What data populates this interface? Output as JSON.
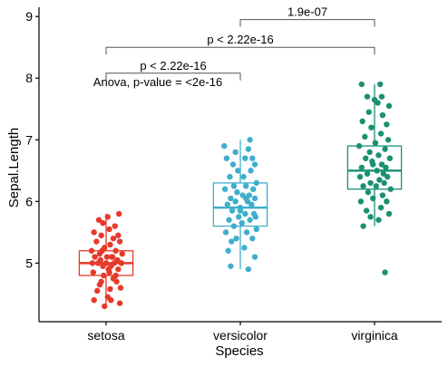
{
  "chart_data": {
    "type": "box",
    "title": "",
    "xlabel": "Species",
    "ylabel": "Sepal.Length",
    "categories": [
      "setosa",
      "versicolor",
      "virginica"
    ],
    "ylim": [
      4.05,
      9.15
    ],
    "yticks": [
      "5",
      "6",
      "7",
      "8",
      "9"
    ],
    "grid": false,
    "legend": "none",
    "series": [
      {
        "name": "setosa",
        "color": "#E7392A",
        "box": {
          "whisker_low": 4.3,
          "q1": 4.8,
          "median": 5.0,
          "q3": 5.2,
          "whisker_high": 5.8
        },
        "points": [
          [
            -0.08,
            4.65
          ],
          [
            0.05,
            4.58
          ],
          [
            0.12,
            4.8
          ],
          [
            -0.15,
            4.4
          ],
          [
            0.02,
            4.45
          ],
          [
            0.17,
            4.35
          ],
          [
            -0.02,
            4.3
          ],
          [
            0.06,
            4.4
          ],
          [
            -0.11,
            4.55
          ],
          [
            0.18,
            4.6
          ],
          [
            -0.06,
            4.7
          ],
          [
            0.09,
            4.75
          ],
          [
            0.15,
            4.9
          ],
          [
            -0.16,
            4.85
          ],
          [
            -0.04,
            4.95
          ],
          [
            0.03,
            4.9
          ],
          [
            0.1,
            5.0
          ],
          [
            -0.1,
            5.0
          ],
          [
            0.14,
            5.05
          ],
          [
            -0.14,
            5.1
          ],
          [
            0.01,
            5.1
          ],
          [
            -0.07,
            5.05
          ],
          [
            0.2,
            5.15
          ],
          [
            0.07,
            5.1
          ],
          [
            -0.18,
            5.2
          ],
          [
            0.12,
            5.2
          ],
          [
            -0.02,
            5.25
          ],
          [
            0.05,
            5.3
          ],
          [
            -0.12,
            5.35
          ],
          [
            0.17,
            5.35
          ],
          [
            -0.06,
            5.45
          ],
          [
            0.09,
            5.4
          ],
          [
            0.15,
            5.45
          ],
          [
            -0.15,
            5.5
          ],
          [
            0.04,
            5.55
          ],
          [
            -0.09,
            5.7
          ],
          [
            0.02,
            5.75
          ],
          [
            0.16,
            5.8
          ],
          [
            -0.04,
            5.65
          ],
          [
            0.11,
            5.6
          ],
          [
            0.0,
            5.0
          ],
          [
            -0.03,
            4.8
          ],
          [
            0.08,
            5.1
          ],
          [
            -0.17,
            5.0
          ],
          [
            0.13,
            4.7
          ],
          [
            0.06,
            4.95
          ],
          [
            -0.08,
            5.15
          ],
          [
            0.19,
            5.0
          ],
          [
            -0.05,
            5.2
          ],
          [
            0.04,
            4.85
          ]
        ]
      },
      {
        "name": "versicolor",
        "color": "#3FAECC",
        "box": {
          "whisker_low": 4.9,
          "q1": 5.6,
          "median": 5.9,
          "q3": 6.3,
          "whisker_high": 7.0
        },
        "points": [
          [
            -0.12,
            4.95
          ],
          [
            0.1,
            4.9
          ],
          [
            -0.15,
            5.2
          ],
          [
            0.18,
            5.1
          ],
          [
            0.05,
            5.25
          ],
          [
            -0.05,
            5.4
          ],
          [
            0.15,
            5.4
          ],
          [
            -0.18,
            5.5
          ],
          [
            0.08,
            5.5
          ],
          [
            0.2,
            5.55
          ],
          [
            -0.08,
            5.6
          ],
          [
            0.02,
            5.65
          ],
          [
            0.12,
            5.7
          ],
          [
            -0.14,
            5.7
          ],
          [
            -0.02,
            5.75
          ],
          [
            0.17,
            5.8
          ],
          [
            0.06,
            5.8
          ],
          [
            -0.1,
            5.85
          ],
          [
            0.0,
            5.9
          ],
          [
            0.14,
            5.95
          ],
          [
            -0.16,
            5.95
          ],
          [
            0.09,
            6.0
          ],
          [
            -0.06,
            6.0
          ],
          [
            0.18,
            6.05
          ],
          [
            -0.12,
            6.05
          ],
          [
            0.03,
            6.1
          ],
          [
            0.11,
            6.1
          ],
          [
            -0.04,
            6.15
          ],
          [
            0.16,
            6.2
          ],
          [
            -0.19,
            6.2
          ],
          [
            0.07,
            6.25
          ],
          [
            -0.08,
            6.25
          ],
          [
            0.2,
            6.3
          ],
          [
            -0.13,
            6.4
          ],
          [
            0.04,
            6.4
          ],
          [
            0.13,
            6.5
          ],
          [
            -0.03,
            6.5
          ],
          [
            0.18,
            6.6
          ],
          [
            -0.09,
            6.6
          ],
          [
            0.06,
            6.7
          ],
          [
            0.15,
            6.7
          ],
          [
            -0.17,
            6.7
          ],
          [
            -0.06,
            6.8
          ],
          [
            0.1,
            6.85
          ],
          [
            -0.2,
            6.9
          ],
          [
            0.12,
            7.0
          ],
          [
            0.0,
            5.85
          ],
          [
            -0.11,
            5.35
          ],
          [
            0.07,
            6.05
          ],
          [
            0.19,
            5.75
          ]
        ]
      },
      {
        "name": "virginica",
        "color": "#1A9073",
        "box": {
          "whisker_low": 5.6,
          "q1": 6.2,
          "median": 6.5,
          "q3": 6.9,
          "whisker_high": 7.9
        },
        "points": [
          [
            0.13,
            4.85
          ],
          [
            -0.14,
            5.6
          ],
          [
            0.05,
            5.7
          ],
          [
            -0.05,
            5.75
          ],
          [
            0.18,
            5.8
          ],
          [
            -0.1,
            5.85
          ],
          [
            0.08,
            5.9
          ],
          [
            0.15,
            6.0
          ],
          [
            -0.17,
            6.0
          ],
          [
            -0.02,
            6.05
          ],
          [
            0.1,
            6.1
          ],
          [
            -0.08,
            6.15
          ],
          [
            0.2,
            6.2
          ],
          [
            0.02,
            6.25
          ],
          [
            -0.14,
            6.25
          ],
          [
            0.12,
            6.3
          ],
          [
            -0.05,
            6.3
          ],
          [
            0.06,
            6.35
          ],
          [
            -0.18,
            6.4
          ],
          [
            0.16,
            6.4
          ],
          [
            -0.09,
            6.45
          ],
          [
            0.03,
            6.5
          ],
          [
            0.14,
            6.55
          ],
          [
            -0.16,
            6.55
          ],
          [
            0.09,
            6.6
          ],
          [
            -0.03,
            6.65
          ],
          [
            0.19,
            6.7
          ],
          [
            -0.11,
            6.7
          ],
          [
            0.05,
            6.75
          ],
          [
            -0.06,
            6.8
          ],
          [
            0.13,
            6.85
          ],
          [
            -0.19,
            6.9
          ],
          [
            0.01,
            6.95
          ],
          [
            0.17,
            7.0
          ],
          [
            -0.12,
            7.05
          ],
          [
            0.08,
            7.1
          ],
          [
            -0.04,
            7.2
          ],
          [
            0.15,
            7.25
          ],
          [
            -0.15,
            7.3
          ],
          [
            0.1,
            7.4
          ],
          [
            -0.07,
            7.45
          ],
          [
            0.18,
            7.55
          ],
          [
            0.04,
            7.6
          ],
          [
            0.0,
            7.65
          ],
          [
            0.09,
            7.7
          ],
          [
            -0.09,
            7.7
          ],
          [
            -0.16,
            7.9
          ],
          [
            0.07,
            7.9
          ],
          [
            -0.02,
            6.6
          ],
          [
            0.11,
            6.45
          ]
        ]
      }
    ],
    "annotations": {
      "anova_text": "Anova, p-value = <2e-16",
      "comparisons": [
        {
          "from": "versicolor",
          "to": "virginica",
          "y": 8.95,
          "label": "1.9e-07"
        },
        {
          "from": "setosa",
          "to": "virginica",
          "y": 8.5,
          "label": "p < 2.22e-16"
        },
        {
          "from": "setosa",
          "to": "versicolor",
          "y": 8.08,
          "label": "p < 2.22e-16"
        }
      ]
    }
  }
}
